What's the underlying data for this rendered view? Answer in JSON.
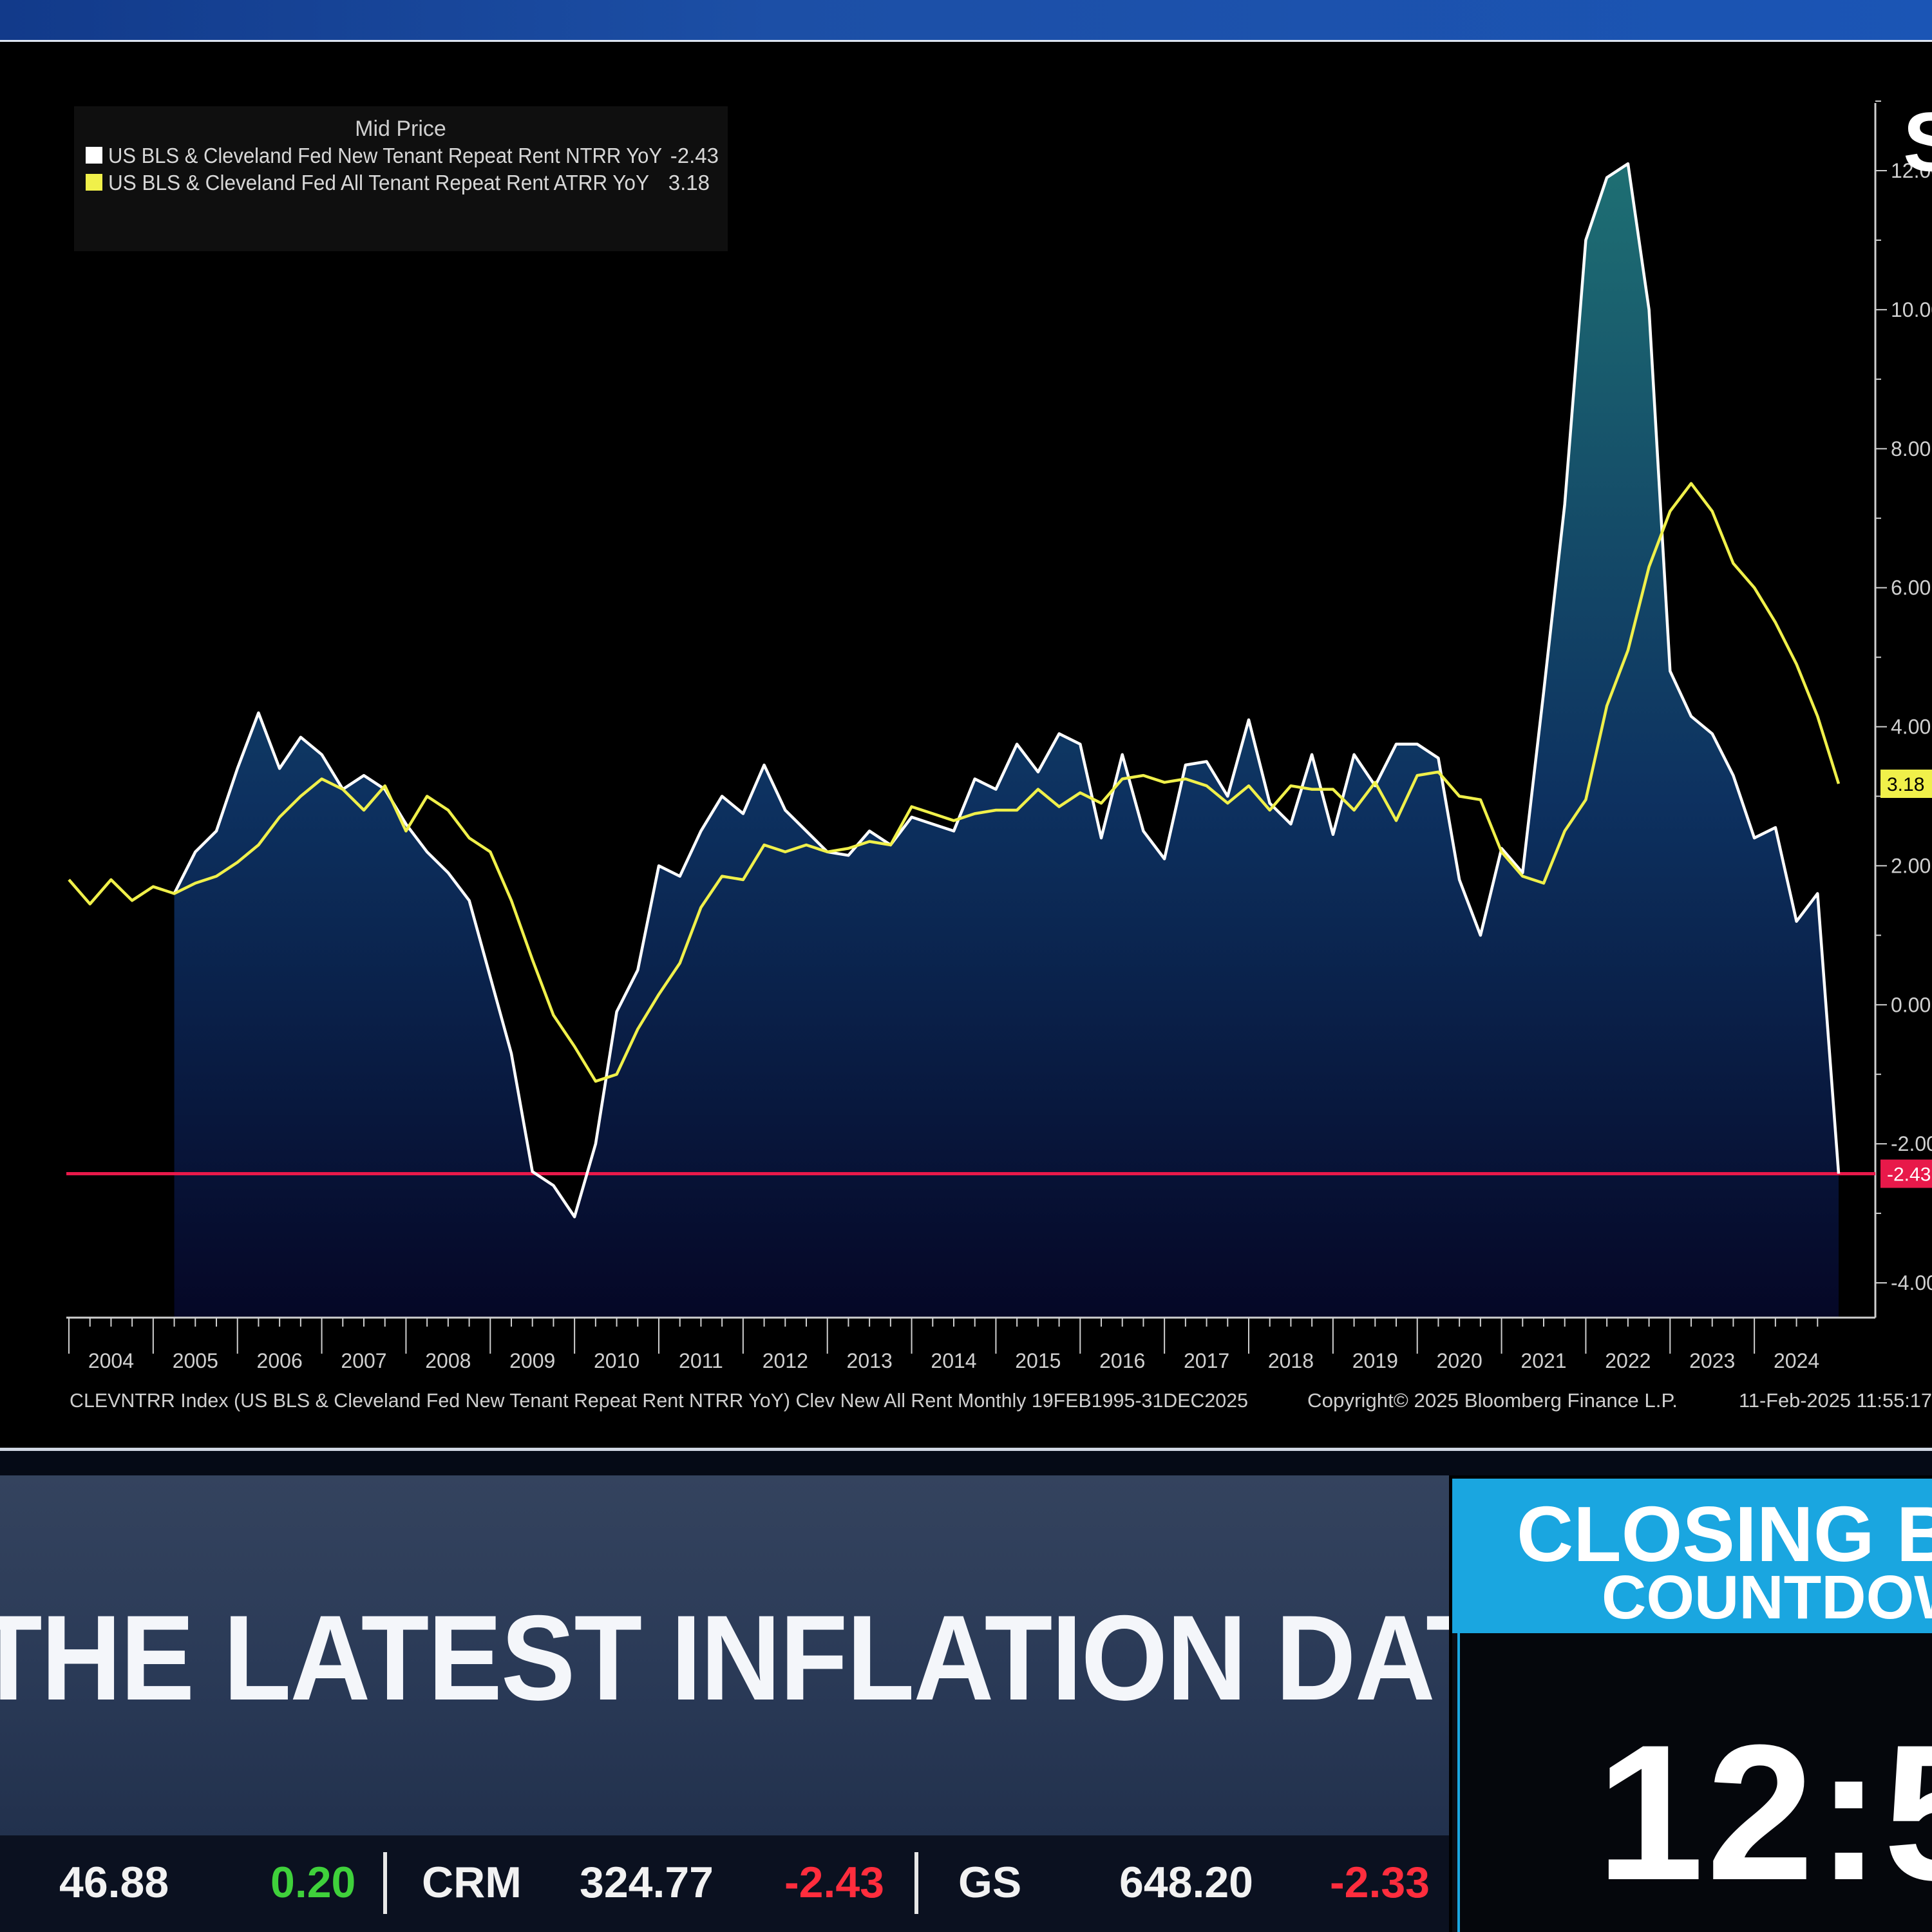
{
  "chart_data": {
    "type": "area",
    "legend": {
      "title": "Mid Price",
      "placement": "top-left",
      "entries": [
        {
          "label": "US BLS & Cleveland Fed New Tenant Repeat Rent NTRR YoY",
          "value": "-2.43",
          "color": "#ffffff"
        },
        {
          "label": "US BLS & Cleveland Fed All Tenant Repeat Rent ATRR YoY",
          "value": "3.18",
          "color": "#f0f04a"
        }
      ]
    },
    "y_axis": {
      "ticks": [
        "12.00",
        "10.00",
        "8.00",
        "6.00",
        "4.00",
        "2.00",
        "0.00",
        "-2.00",
        "-4.00"
      ],
      "range": [
        -4.5,
        13.0
      ],
      "position": "right",
      "partial_label": "S"
    },
    "x_axis": {
      "ticks": [
        "2004",
        "2005",
        "2006",
        "2007",
        "2008",
        "2009",
        "2010",
        "2011",
        "2012",
        "2013",
        "2014",
        "2015",
        "2016",
        "2017",
        "2018",
        "2019",
        "2020",
        "2021",
        "2022",
        "2023",
        "2024"
      ],
      "range": [
        2004.0,
        2025.0
      ]
    },
    "reference_line": {
      "value": -2.43,
      "color": "#e8194a"
    },
    "value_badges": [
      {
        "text": "3.18",
        "value": 3.18,
        "color": "#f0f04a"
      },
      {
        "text": "-2.43",
        "value": -2.43,
        "color": "#e8194a"
      }
    ],
    "series": [
      {
        "name": "US BLS & Cleveland Fed New Tenant Repeat Rent NTRR YoY",
        "color": "#ffffff",
        "fill": "gradient",
        "points": [
          [
            2005.25,
            1.6
          ],
          [
            2005.5,
            2.2
          ],
          [
            2005.75,
            2.5
          ],
          [
            2006.0,
            3.4
          ],
          [
            2006.25,
            4.2
          ],
          [
            2006.5,
            3.4
          ],
          [
            2006.75,
            3.85
          ],
          [
            2007.0,
            3.6
          ],
          [
            2007.25,
            3.1
          ],
          [
            2007.5,
            3.3
          ],
          [
            2007.75,
            3.1
          ],
          [
            2008.0,
            2.6
          ],
          [
            2008.25,
            2.2
          ],
          [
            2008.5,
            1.9
          ],
          [
            2008.75,
            1.5
          ],
          [
            2009.0,
            0.4
          ],
          [
            2009.25,
            -0.7
          ],
          [
            2009.5,
            -2.4
          ],
          [
            2009.75,
            -2.6
          ],
          [
            2010.0,
            -3.05
          ],
          [
            2010.25,
            -2.0
          ],
          [
            2010.5,
            -0.1
          ],
          [
            2010.75,
            0.5
          ],
          [
            2011.0,
            2.0
          ],
          [
            2011.25,
            1.85
          ],
          [
            2011.5,
            2.5
          ],
          [
            2011.75,
            3.0
          ],
          [
            2012.0,
            2.75
          ],
          [
            2012.25,
            3.45
          ],
          [
            2012.5,
            2.8
          ],
          [
            2012.75,
            2.5
          ],
          [
            2013.0,
            2.2
          ],
          [
            2013.25,
            2.15
          ],
          [
            2013.5,
            2.5
          ],
          [
            2013.75,
            2.3
          ],
          [
            2014.0,
            2.7
          ],
          [
            2014.25,
            2.6
          ],
          [
            2014.5,
            2.5
          ],
          [
            2014.75,
            3.25
          ],
          [
            2015.0,
            3.1
          ],
          [
            2015.25,
            3.75
          ],
          [
            2015.5,
            3.35
          ],
          [
            2015.75,
            3.9
          ],
          [
            2016.0,
            3.75
          ],
          [
            2016.25,
            2.4
          ],
          [
            2016.5,
            3.6
          ],
          [
            2016.75,
            2.5
          ],
          [
            2017.0,
            2.1
          ],
          [
            2017.25,
            3.45
          ],
          [
            2017.5,
            3.5
          ],
          [
            2017.75,
            3.0
          ],
          [
            2018.0,
            4.1
          ],
          [
            2018.25,
            2.9
          ],
          [
            2018.5,
            2.6
          ],
          [
            2018.75,
            3.6
          ],
          [
            2019.0,
            2.45
          ],
          [
            2019.25,
            3.6
          ],
          [
            2019.5,
            3.15
          ],
          [
            2019.75,
            3.75
          ],
          [
            2020.0,
            3.75
          ],
          [
            2020.25,
            3.55
          ],
          [
            2020.5,
            1.8
          ],
          [
            2020.75,
            1.0
          ],
          [
            2021.0,
            2.25
          ],
          [
            2021.25,
            1.9
          ],
          [
            2021.5,
            4.5
          ],
          [
            2021.75,
            7.2
          ],
          [
            2022.0,
            11.0
          ],
          [
            2022.25,
            11.9
          ],
          [
            2022.5,
            12.1
          ],
          [
            2022.75,
            10.0
          ],
          [
            2023.0,
            4.8
          ],
          [
            2023.25,
            4.15
          ],
          [
            2023.5,
            3.9
          ],
          [
            2023.75,
            3.3
          ],
          [
            2024.0,
            2.4
          ],
          [
            2024.25,
            2.55
          ],
          [
            2024.5,
            1.2
          ],
          [
            2024.75,
            1.6
          ],
          [
            2025.0,
            -2.43
          ]
        ]
      },
      {
        "name": "US BLS & Cleveland Fed All Tenant Repeat Rent ATRR YoY",
        "color": "#f0f04a",
        "points": [
          [
            2004.0,
            1.8
          ],
          [
            2004.25,
            1.45
          ],
          [
            2004.5,
            1.8
          ],
          [
            2004.75,
            1.5
          ],
          [
            2005.0,
            1.7
          ],
          [
            2005.25,
            1.6
          ],
          [
            2005.5,
            1.75
          ],
          [
            2005.75,
            1.85
          ],
          [
            2006.0,
            2.05
          ],
          [
            2006.25,
            2.3
          ],
          [
            2006.5,
            2.7
          ],
          [
            2006.75,
            3.0
          ],
          [
            2007.0,
            3.25
          ],
          [
            2007.25,
            3.1
          ],
          [
            2007.5,
            2.8
          ],
          [
            2007.75,
            3.15
          ],
          [
            2008.0,
            2.5
          ],
          [
            2008.25,
            3.0
          ],
          [
            2008.5,
            2.8
          ],
          [
            2008.75,
            2.4
          ],
          [
            2009.0,
            2.2
          ],
          [
            2009.25,
            1.5
          ],
          [
            2009.5,
            0.65
          ],
          [
            2009.75,
            -0.15
          ],
          [
            2010.0,
            -0.6
          ],
          [
            2010.25,
            -1.1
          ],
          [
            2010.5,
            -1.0
          ],
          [
            2010.75,
            -0.35
          ],
          [
            2011.0,
            0.15
          ],
          [
            2011.25,
            0.6
          ],
          [
            2011.5,
            1.4
          ],
          [
            2011.75,
            1.85
          ],
          [
            2012.0,
            1.8
          ],
          [
            2012.25,
            2.3
          ],
          [
            2012.5,
            2.2
          ],
          [
            2012.75,
            2.3
          ],
          [
            2013.0,
            2.2
          ],
          [
            2013.25,
            2.25
          ],
          [
            2013.5,
            2.35
          ],
          [
            2013.75,
            2.3
          ],
          [
            2014.0,
            2.85
          ],
          [
            2014.25,
            2.75
          ],
          [
            2014.5,
            2.65
          ],
          [
            2014.75,
            2.75
          ],
          [
            2015.0,
            2.8
          ],
          [
            2015.25,
            2.8
          ],
          [
            2015.5,
            3.1
          ],
          [
            2015.75,
            2.85
          ],
          [
            2016.0,
            3.05
          ],
          [
            2016.25,
            2.9
          ],
          [
            2016.5,
            3.25
          ],
          [
            2016.75,
            3.3
          ],
          [
            2017.0,
            3.2
          ],
          [
            2017.25,
            3.25
          ],
          [
            2017.5,
            3.15
          ],
          [
            2017.75,
            2.9
          ],
          [
            2018.0,
            3.15
          ],
          [
            2018.25,
            2.8
          ],
          [
            2018.5,
            3.15
          ],
          [
            2018.75,
            3.1
          ],
          [
            2019.0,
            3.1
          ],
          [
            2019.25,
            2.8
          ],
          [
            2019.5,
            3.2
          ],
          [
            2019.75,
            2.65
          ],
          [
            2020.0,
            3.3
          ],
          [
            2020.25,
            3.35
          ],
          [
            2020.5,
            3.0
          ],
          [
            2020.75,
            2.95
          ],
          [
            2021.0,
            2.2
          ],
          [
            2021.25,
            1.85
          ],
          [
            2021.5,
            1.75
          ],
          [
            2021.75,
            2.5
          ],
          [
            2022.0,
            2.95
          ],
          [
            2022.25,
            4.3
          ],
          [
            2022.5,
            5.1
          ],
          [
            2022.75,
            6.3
          ],
          [
            2023.0,
            7.1
          ],
          [
            2023.25,
            7.5
          ],
          [
            2023.5,
            7.1
          ],
          [
            2023.75,
            6.35
          ],
          [
            2024.0,
            6.0
          ],
          [
            2024.25,
            5.5
          ],
          [
            2024.5,
            4.9
          ],
          [
            2024.75,
            4.15
          ],
          [
            2025.0,
            3.18
          ]
        ]
      }
    ],
    "footer": {
      "source": "CLEVNTRR Index (US BLS & Cleveland Fed New Tenant Repeat Rent NTRR YoY) Clev New All Rent  Monthly 19FEB1995-31DEC2025",
      "copyright": "Copyright© 2025 Bloomberg Finance L.P.",
      "timestamp": "11-Feb-2025 11:55:17"
    },
    "colors": {
      "background": "#000000",
      "area_fill_top": "#1e6f73",
      "area_fill_bottom": "#050726",
      "axis": "#cfcfcf"
    }
  },
  "headline": {
    "text": "THE LATEST INFLATION DATA"
  },
  "countdown": {
    "title": "CLOSING B",
    "subtitle": "COUNTDOW",
    "time": "12:5"
  },
  "ticker": {
    "items": [
      {
        "symbol": "",
        "price": "46.88",
        "change": "0.20",
        "direction": "up"
      },
      {
        "symbol": "CRM",
        "price": "324.77",
        "change": "-2.43",
        "direction": "down"
      },
      {
        "symbol": "GS",
        "price": "648.20",
        "change": "-2.33",
        "direction": "down"
      }
    ]
  }
}
